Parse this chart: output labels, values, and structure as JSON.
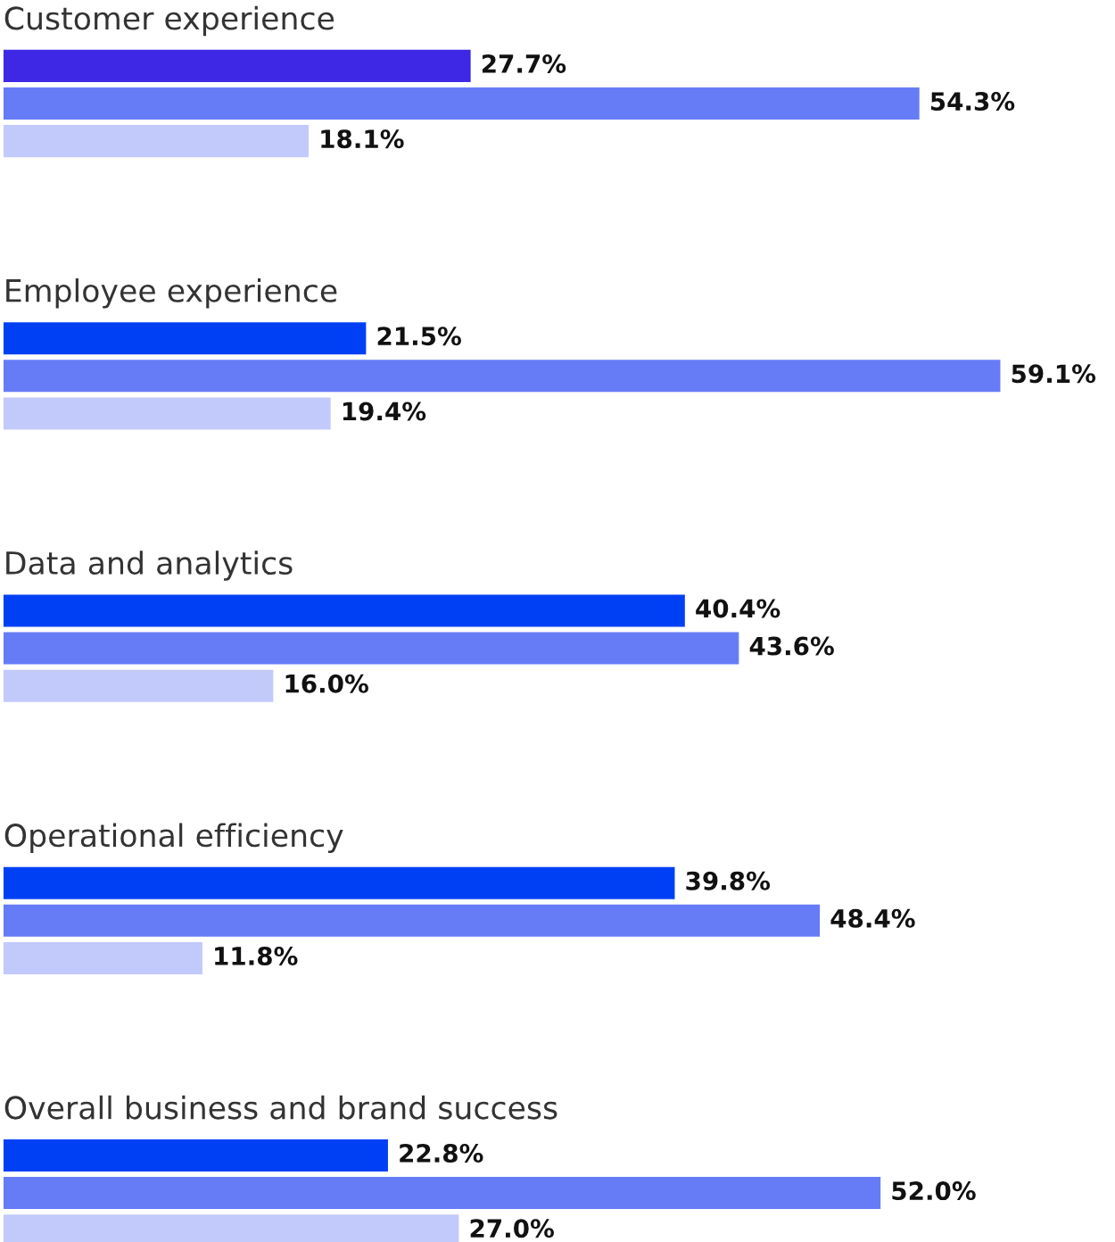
{
  "chart_data": {
    "type": "bar",
    "orientation": "horizontal",
    "categories": [
      "Customer experience",
      "Employee experience",
      "Data and analytics",
      "Operational efficiency",
      "Overall business and brand success"
    ],
    "series": [
      {
        "colors": [
          "#3f27e6",
          "#0040f5",
          "#0040f5",
          "#0040f5",
          "#0040f5"
        ],
        "values": [
          27.7,
          21.5,
          40.4,
          39.8,
          22.8
        ],
        "value_labels": [
          "27.7%",
          "21.5%",
          "40.4%",
          "39.8%",
          "22.8%"
        ]
      },
      {
        "color": "#667cf7",
        "values": [
          54.3,
          59.1,
          43.6,
          48.4,
          52.0
        ],
        "value_labels": [
          "54.3%",
          "59.1%",
          "43.6%",
          "48.4%",
          "52.0%"
        ]
      },
      {
        "color": "#c2c9fb",
        "values": [
          18.1,
          19.4,
          16.0,
          11.8,
          27.0
        ],
        "value_labels": [
          "18.1%",
          "19.4%",
          "16.0%",
          "11.8%",
          "27.0%"
        ]
      }
    ]
  }
}
